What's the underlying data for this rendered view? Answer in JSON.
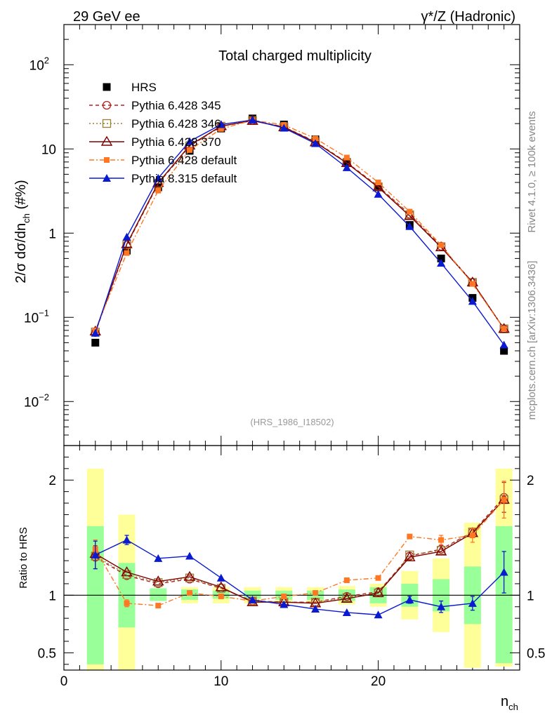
{
  "header": {
    "left": "29 GeV ee",
    "right": "γ*/Z (Hadronic)"
  },
  "side_labels": {
    "top": "Rivet 4.1.0, ≥ 100k events",
    "bottom": "mcplots.cern.ch [arXiv:1306.3436]"
  },
  "chart_data": {
    "type": "line",
    "title": "Total charged multiplicity",
    "analysis_tag": "(HRS_1986_I18502)",
    "ylabel": "2/σ dσ/dn_ch (#%)",
    "ylabel_parts": {
      "prefix": "2/σ  dσ/dn",
      "sub": "ch",
      "suffix": " (#%)"
    },
    "xlabel": "n_ch",
    "xlabel_parts": {
      "main": "n",
      "sub": "ch"
    },
    "ratio_ylabel": "Ratio to HRS",
    "xlim": [
      0,
      29
    ],
    "ylim": [
      0.003,
      300
    ],
    "yscale": "log",
    "ratio_ylim": [
      0.35,
      2.3
    ],
    "x_ticks": [
      0,
      10,
      20
    ],
    "y_ticks": [
      {
        "value": 0.01,
        "base": "10",
        "exp": "−2"
      },
      {
        "value": 0.1,
        "base": "10",
        "exp": "−1"
      },
      {
        "value": 1,
        "base": "1",
        "exp": ""
      },
      {
        "value": 10,
        "base": "10",
        "exp": ""
      },
      {
        "value": 100,
        "base": "10",
        "exp": "2"
      }
    ],
    "ratio_ticks": [
      {
        "value": 0.5,
        "label": "0.5"
      },
      {
        "value": 1,
        "label": "1"
      },
      {
        "value": 2,
        "label": "2"
      }
    ],
    "x": [
      2,
      4,
      6,
      8,
      10,
      12,
      14,
      16,
      18,
      20,
      22,
      24,
      26,
      28
    ],
    "data": {
      "name": "HRS",
      "values": [
        0.05,
        0.62,
        3.5,
        9.5,
        17.5,
        23,
        19.5,
        13,
        7,
        3.5,
        1.25,
        0.5,
        0.17,
        0.04
      ],
      "band_stat_lo": [
        0.4,
        0.72,
        0.95,
        0.96,
        0.97,
        0.97,
        0.96,
        0.96,
        0.95,
        0.93,
        0.9,
        0.86,
        0.75,
        0.41
      ],
      "band_stat_hi": [
        1.6,
        1.28,
        1.06,
        1.05,
        1.04,
        1.04,
        1.04,
        1.04,
        1.05,
        1.07,
        1.1,
        1.14,
        1.25,
        1.6
      ],
      "band_tot_lo": [
        0.35,
        0.35,
        0.95,
        0.93,
        0.93,
        0.93,
        0.93,
        0.93,
        0.92,
        0.9,
        0.79,
        0.68,
        0.37,
        0.38
      ],
      "band_tot_hi": [
        2.1,
        1.7,
        1.06,
        1.07,
        1.07,
        1.07,
        1.07,
        1.07,
        1.08,
        1.1,
        1.21,
        1.32,
        1.63,
        2.1
      ]
    },
    "series": [
      {
        "name": "Pythia 6.428 345",
        "color": "#b22222",
        "dash": "5,4",
        "marker": "open-circle",
        "values": [
          0.066,
          0.72,
          3.85,
          10.8,
          18.5,
          21.8,
          18.3,
          12.2,
          6.9,
          3.6,
          1.68,
          0.7,
          0.26,
          0.073
        ],
        "ratio": [
          1.33,
          1.17,
          1.1,
          1.14,
          1.06,
          0.95,
          0.94,
          0.94,
          0.99,
          1.03,
          1.34,
          1.4,
          1.55,
          1.85
        ],
        "ratio_err": [
          0.1,
          0,
          0,
          0,
          0,
          0,
          0,
          0,
          0,
          0,
          0,
          0,
          0,
          0.13
        ]
      },
      {
        "name": "Pythia 6.428 346",
        "color": "#9b7d33",
        "dash": "2,3",
        "marker": "open-square",
        "values": [
          0.067,
          0.73,
          3.9,
          10.9,
          18.6,
          21.7,
          18.2,
          12.1,
          6.85,
          3.55,
          1.65,
          0.69,
          0.26,
          0.073
        ],
        "ratio": [
          1.34,
          1.18,
          1.11,
          1.15,
          1.06,
          0.95,
          0.94,
          0.94,
          0.98,
          1.02,
          1.35,
          1.39,
          1.55,
          1.83
        ],
        "ratio_err": [
          0,
          0,
          0,
          0,
          0,
          0,
          0,
          0,
          0,
          0,
          0,
          0,
          0,
          0
        ]
      },
      {
        "name": "Pythia 6.428 370",
        "color": "#7f0000",
        "dash": "",
        "marker": "open-triangle",
        "values": [
          0.068,
          0.74,
          3.95,
          11,
          18.7,
          21.6,
          18.1,
          12.0,
          6.8,
          3.5,
          1.6,
          0.68,
          0.26,
          0.073
        ],
        "ratio": [
          1.36,
          1.2,
          1.12,
          1.16,
          1.07,
          0.94,
          0.94,
          0.93,
          0.97,
          1.02,
          1.33,
          1.38,
          1.54,
          1.83
        ],
        "ratio_err": [
          0,
          0,
          0,
          0,
          0,
          0,
          0,
          0,
          0,
          0,
          0,
          0,
          0,
          0
        ]
      },
      {
        "name": "Pythia 6.428 default",
        "color": "#ff7722",
        "dash": "7,3,2,3",
        "marker": "filled-square",
        "values": [
          0.07,
          0.58,
          3.2,
          9.7,
          17.3,
          21.9,
          19.3,
          13.3,
          7.9,
          4.0,
          1.8,
          0.72,
          0.25,
          0.073
        ],
        "ratio": [
          1.4,
          0.93,
          0.91,
          1.02,
          0.99,
          0.95,
          0.99,
          1.02,
          1.13,
          1.15,
          1.51,
          1.48,
          1.52,
          1.83
        ],
        "ratio_err": [
          0.08,
          0.03,
          0,
          0,
          0,
          0,
          0,
          0,
          0,
          0,
          0,
          0.04,
          0.06,
          0.16
        ]
      },
      {
        "name": "Pythia 8.315 default",
        "color": "#0a1ad0",
        "dash": "",
        "marker": "filled-triangle",
        "values": [
          0.065,
          0.9,
          4.5,
          12.3,
          19.5,
          22.1,
          17.7,
          11.6,
          6.0,
          2.9,
          1.2,
          0.44,
          0.155,
          0.047
        ],
        "ratio": [
          1.35,
          1.48,
          1.32,
          1.34,
          1.15,
          0.96,
          0.92,
          0.88,
          0.85,
          0.83,
          0.96,
          0.9,
          0.93,
          1.2
        ],
        "ratio_err": [
          0.12,
          0.04,
          0,
          0,
          0,
          0,
          0,
          0,
          0,
          0,
          0.03,
          0.05,
          0.06,
          0.18
        ]
      }
    ]
  }
}
